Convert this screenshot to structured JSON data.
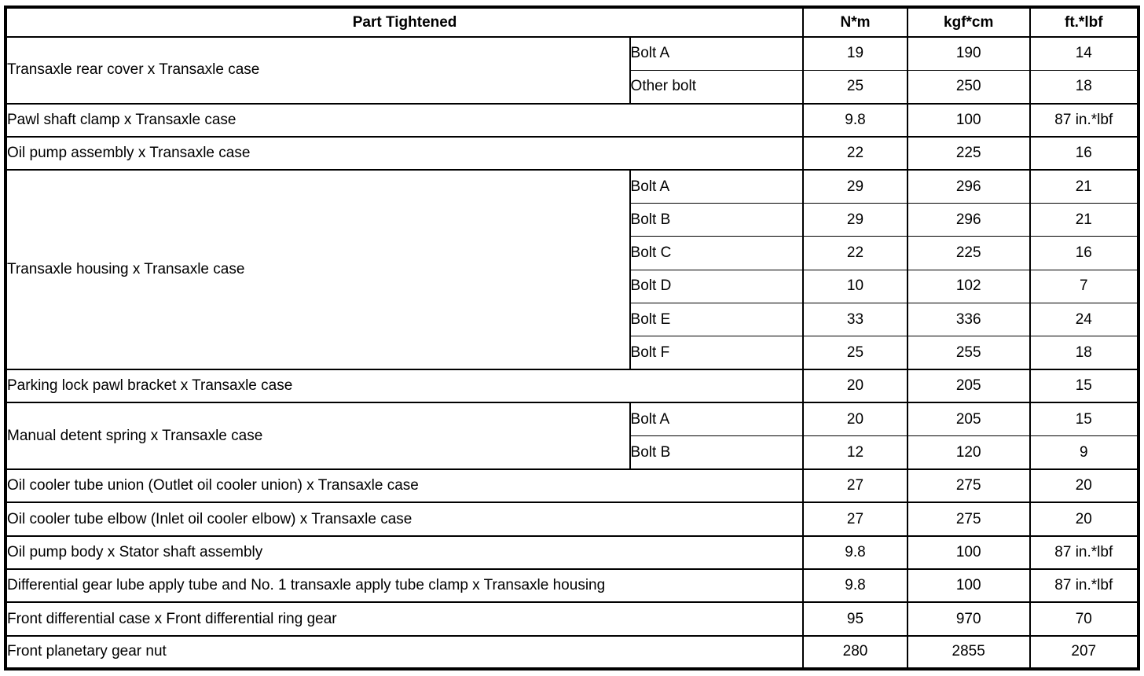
{
  "table": {
    "header": {
      "part_column_label": "Part Tightened",
      "torque_units": [
        "N*m",
        "kgf*cm",
        "ft.*lbf"
      ]
    },
    "groups": [
      {
        "part": "Transaxle rear cover x Transaxle case",
        "entries": [
          {
            "sub": "Bolt A",
            "nm": "19",
            "kgfcm": "190",
            "ftlbf": "14"
          },
          {
            "sub": "Other bolt",
            "nm": "25",
            "kgfcm": "250",
            "ftlbf": "18"
          }
        ]
      },
      {
        "part": "Pawl shaft clamp x Transaxle case",
        "entries": [
          {
            "nm": "9.8",
            "kgfcm": "100",
            "ftlbf": "87 in.*lbf"
          }
        ]
      },
      {
        "part": "Oil pump assembly x Transaxle case",
        "entries": [
          {
            "nm": "22",
            "kgfcm": "225",
            "ftlbf": "16"
          }
        ]
      },
      {
        "part": "Transaxle housing x Transaxle case",
        "entries": [
          {
            "sub": "Bolt A",
            "nm": "29",
            "kgfcm": "296",
            "ftlbf": "21"
          },
          {
            "sub": "Bolt B",
            "nm": "29",
            "kgfcm": "296",
            "ftlbf": "21"
          },
          {
            "sub": "Bolt C",
            "nm": "22",
            "kgfcm": "225",
            "ftlbf": "16"
          },
          {
            "sub": "Bolt D",
            "nm": "10",
            "kgfcm": "102",
            "ftlbf": "7"
          },
          {
            "sub": "Bolt E",
            "nm": "33",
            "kgfcm": "336",
            "ftlbf": "24"
          },
          {
            "sub": "Bolt F",
            "nm": "25",
            "kgfcm": "255",
            "ftlbf": "18"
          }
        ]
      },
      {
        "part": "Parking lock pawl bracket x Transaxle case",
        "entries": [
          {
            "nm": "20",
            "kgfcm": "205",
            "ftlbf": "15"
          }
        ]
      },
      {
        "part": "Manual detent spring x Transaxle case",
        "entries": [
          {
            "sub": "Bolt A",
            "nm": "20",
            "kgfcm": "205",
            "ftlbf": "15"
          },
          {
            "sub": "Bolt B",
            "nm": "12",
            "kgfcm": "120",
            "ftlbf": "9"
          }
        ]
      },
      {
        "part": "Oil cooler tube union (Outlet oil cooler union) x Transaxle case",
        "entries": [
          {
            "nm": "27",
            "kgfcm": "275",
            "ftlbf": "20"
          }
        ]
      },
      {
        "part": "Oil cooler tube elbow (Inlet oil cooler elbow) x Transaxle case",
        "entries": [
          {
            "nm": "27",
            "kgfcm": "275",
            "ftlbf": "20"
          }
        ]
      },
      {
        "part": "Oil pump body x Stator shaft assembly",
        "entries": [
          {
            "nm": "9.8",
            "kgfcm": "100",
            "ftlbf": "87 in.*lbf"
          }
        ]
      },
      {
        "part": "Differential gear lube apply tube and No. 1 transaxle apply tube clamp x Transaxle housing",
        "entries": [
          {
            "nm": "9.8",
            "kgfcm": "100",
            "ftlbf": "87 in.*lbf"
          }
        ]
      },
      {
        "part": "Front differential case x Front differential ring gear",
        "entries": [
          {
            "nm": "95",
            "kgfcm": "970",
            "ftlbf": "70"
          }
        ]
      },
      {
        "part": "Front planetary gear nut",
        "entries": [
          {
            "nm": "280",
            "kgfcm": "2855",
            "ftlbf": "207"
          }
        ]
      }
    ]
  }
}
